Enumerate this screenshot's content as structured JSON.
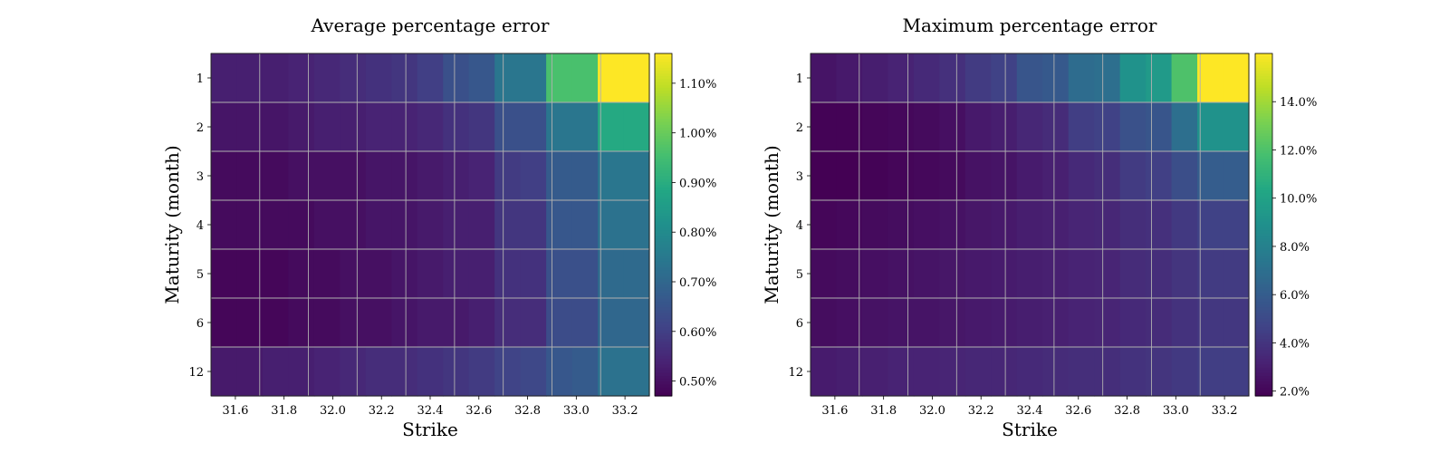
{
  "chart_data": [
    {
      "type": "heatmap",
      "title": "Average percentage error",
      "xlabel": "Strike",
      "ylabel": "Maturity (month)",
      "x_tick_labels": [
        "31.6",
        "31.8",
        "32.0",
        "32.2",
        "32.4",
        "32.6",
        "32.8",
        "33.0",
        "33.2"
      ],
      "y_tick_labels": [
        "1",
        "2",
        "3",
        "4",
        "5",
        "6",
        "12"
      ],
      "colorbar": {
        "range": [
          0.47,
          1.16
        ],
        "tick_values": [
          0.5,
          0.6,
          0.7,
          0.8,
          0.9,
          1.0,
          1.1
        ],
        "tick_labels": [
          "0.50%",
          "0.60%",
          "0.70%",
          "0.80%",
          "0.90%",
          "1.00%",
          "1.10%"
        ]
      },
      "grid": true,
      "values": [
        [
          0.53,
          0.53,
          0.53,
          0.54,
          0.55,
          0.56,
          0.57,
          0.58,
          0.6,
          0.64,
          0.66,
          0.74,
          0.74,
          0.96,
          0.96,
          1.16,
          1.16
        ],
        [
          0.51,
          0.51,
          0.51,
          0.52,
          0.53,
          0.53,
          0.54,
          0.54,
          0.55,
          0.57,
          0.58,
          0.64,
          0.64,
          0.74,
          0.74,
          0.89,
          0.89
        ],
        [
          0.49,
          0.49,
          0.49,
          0.5,
          0.5,
          0.5,
          0.51,
          0.51,
          0.52,
          0.53,
          0.54,
          0.59,
          0.6,
          0.67,
          0.67,
          0.74,
          0.74
        ],
        [
          0.49,
          0.49,
          0.49,
          0.49,
          0.5,
          0.5,
          0.51,
          0.51,
          0.52,
          0.53,
          0.53,
          0.58,
          0.58,
          0.66,
          0.66,
          0.73,
          0.73
        ],
        [
          0.48,
          0.48,
          0.48,
          0.49,
          0.49,
          0.5,
          0.5,
          0.51,
          0.52,
          0.53,
          0.53,
          0.57,
          0.57,
          0.64,
          0.64,
          0.71,
          0.71
        ],
        [
          0.48,
          0.48,
          0.48,
          0.49,
          0.49,
          0.5,
          0.5,
          0.51,
          0.52,
          0.52,
          0.53,
          0.56,
          0.56,
          0.63,
          0.63,
          0.7,
          0.7
        ],
        [
          0.52,
          0.52,
          0.53,
          0.53,
          0.54,
          0.55,
          0.56,
          0.56,
          0.57,
          0.58,
          0.59,
          0.61,
          0.62,
          0.66,
          0.67,
          0.73,
          0.73
        ]
      ]
    },
    {
      "type": "heatmap",
      "title": "Maximum percentage error",
      "xlabel": "Strike",
      "ylabel": "Maturity (month)",
      "x_tick_labels": [
        "31.6",
        "31.8",
        "32.0",
        "32.2",
        "32.4",
        "32.6",
        "32.8",
        "33.0",
        "33.2"
      ],
      "y_tick_labels": [
        "1",
        "2",
        "3",
        "4",
        "5",
        "6",
        "12"
      ],
      "colorbar": {
        "range": [
          1.8,
          16.0
        ],
        "tick_values": [
          2.0,
          4.0,
          6.0,
          8.0,
          10.0,
          12.0,
          14.0
        ],
        "tick_labels": [
          "2.0%",
          "4.0%",
          "6.0%",
          "8.0%",
          "10.0%",
          "12.0%",
          "14.0%"
        ]
      },
      "grid": true,
      "values": [
        [
          2.6,
          2.8,
          3.0,
          3.2,
          3.5,
          3.8,
          4.3,
          4.6,
          5.6,
          5.8,
          6.8,
          7.0,
          9.0,
          9.5,
          12.0,
          16.0,
          16.0
        ],
        [
          1.9,
          1.9,
          2.0,
          2.1,
          2.2,
          2.4,
          2.8,
          3.0,
          3.4,
          3.6,
          4.4,
          4.6,
          5.4,
          5.6,
          7.0,
          9.0,
          9.0
        ],
        [
          1.8,
          1.8,
          1.9,
          2.0,
          2.1,
          2.2,
          2.5,
          2.6,
          2.9,
          3.1,
          3.5,
          3.7,
          4.3,
          4.5,
          5.2,
          6.0,
          6.0
        ],
        [
          2.0,
          2.1,
          2.2,
          2.3,
          2.4,
          2.5,
          2.7,
          2.8,
          3.0,
          3.1,
          3.3,
          3.4,
          3.7,
          3.8,
          4.2,
          4.6,
          4.6
        ],
        [
          2.2,
          2.3,
          2.4,
          2.5,
          2.6,
          2.7,
          2.8,
          2.9,
          3.0,
          3.1,
          3.2,
          3.3,
          3.6,
          3.7,
          4.0,
          4.3,
          4.3
        ],
        [
          2.3,
          2.4,
          2.5,
          2.6,
          2.6,
          2.7,
          2.8,
          2.9,
          3.0,
          3.1,
          3.2,
          3.3,
          3.5,
          3.6,
          3.9,
          4.1,
          4.1
        ],
        [
          2.9,
          3.0,
          3.1,
          3.2,
          3.2,
          3.3,
          3.4,
          3.4,
          3.5,
          3.6,
          3.7,
          3.7,
          3.9,
          4.0,
          4.2,
          4.4,
          4.4
        ]
      ]
    }
  ]
}
